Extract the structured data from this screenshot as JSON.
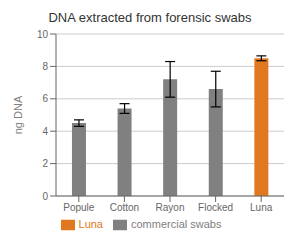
{
  "chart_data": {
    "type": "bar",
    "title": "DNA extracted from forensic swabs",
    "ylabel": "ng DNA",
    "categories": [
      "Popule",
      "Cotton",
      "Rayon",
      "Flocked",
      "Luna"
    ],
    "series": [
      {
        "name": "commercial swabs",
        "color": "#808080",
        "values": [
          4.5,
          5.4,
          7.2,
          6.6,
          null
        ],
        "errors": [
          0.2,
          0.3,
          1.1,
          1.1,
          null
        ]
      },
      {
        "name": "Luna",
        "color": "#E07820",
        "values": [
          null,
          null,
          null,
          null,
          8.5
        ],
        "errors": [
          null,
          null,
          null,
          null,
          0.15
        ]
      }
    ],
    "ylim": [
      0,
      10
    ],
    "yticks": [
      0,
      2,
      4,
      6,
      8,
      10
    ],
    "grid": true
  }
}
